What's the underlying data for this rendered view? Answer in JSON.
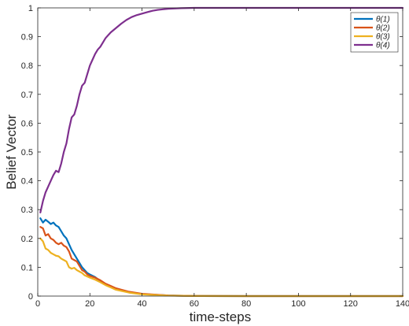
{
  "chart_data": {
    "type": "line",
    "xlabel": "time-steps",
    "ylabel": "Belief Vector",
    "xlim": [
      0,
      140
    ],
    "ylim": [
      0,
      1
    ],
    "x_ticks": [
      0,
      20,
      40,
      60,
      80,
      100,
      120,
      140
    ],
    "y_ticks": [
      0,
      0.1,
      0.2,
      0.3,
      0.4,
      0.5,
      0.6,
      0.7,
      0.8,
      0.9,
      1
    ],
    "grid": false,
    "legend_position": "top-right",
    "series": [
      {
        "name": "θ(1)",
        "color": "#0072BD",
        "points": [
          [
            1,
            0.27
          ],
          [
            2,
            0.255
          ],
          [
            3,
            0.265
          ],
          [
            4,
            0.258
          ],
          [
            5,
            0.25
          ],
          [
            6,
            0.255
          ],
          [
            7,
            0.245
          ],
          [
            8,
            0.24
          ],
          [
            9,
            0.225
          ],
          [
            10,
            0.21
          ],
          [
            11,
            0.2
          ],
          [
            12,
            0.18
          ],
          [
            13,
            0.16
          ],
          [
            14,
            0.145
          ],
          [
            15,
            0.13
          ],
          [
            16,
            0.115
          ],
          [
            17,
            0.1
          ],
          [
            18,
            0.09
          ],
          [
            19,
            0.08
          ],
          [
            20,
            0.075
          ],
          [
            22,
            0.066
          ],
          [
            24,
            0.052
          ],
          [
            26,
            0.04
          ],
          [
            28,
            0.032
          ],
          [
            30,
            0.024
          ],
          [
            35,
            0.013
          ],
          [
            40,
            0.007
          ],
          [
            50,
            0.002
          ],
          [
            60,
            0.0005
          ],
          [
            80,
            0
          ],
          [
            100,
            0
          ],
          [
            120,
            0
          ],
          [
            140,
            0
          ]
        ]
      },
      {
        "name": "θ(2)",
        "color": "#D95319",
        "points": [
          [
            1,
            0.24
          ],
          [
            2,
            0.235
          ],
          [
            3,
            0.21
          ],
          [
            4,
            0.215
          ],
          [
            5,
            0.2
          ],
          [
            6,
            0.195
          ],
          [
            7,
            0.185
          ],
          [
            8,
            0.18
          ],
          [
            9,
            0.185
          ],
          [
            10,
            0.175
          ],
          [
            11,
            0.17
          ],
          [
            12,
            0.155
          ],
          [
            13,
            0.13
          ],
          [
            14,
            0.125
          ],
          [
            15,
            0.12
          ],
          [
            16,
            0.105
          ],
          [
            17,
            0.09
          ],
          [
            18,
            0.085
          ],
          [
            19,
            0.075
          ],
          [
            20,
            0.07
          ],
          [
            22,
            0.064
          ],
          [
            24,
            0.055
          ],
          [
            26,
            0.043
          ],
          [
            28,
            0.035
          ],
          [
            30,
            0.027
          ],
          [
            35,
            0.015
          ],
          [
            40,
            0.008
          ],
          [
            50,
            0.002
          ],
          [
            60,
            0.0005
          ],
          [
            80,
            0
          ],
          [
            100,
            0
          ],
          [
            120,
            0
          ],
          [
            140,
            0
          ]
        ]
      },
      {
        "name": "θ(3)",
        "color": "#EDB120",
        "points": [
          [
            1,
            0.2
          ],
          [
            2,
            0.19
          ],
          [
            3,
            0.165
          ],
          [
            4,
            0.16
          ],
          [
            5,
            0.15
          ],
          [
            6,
            0.145
          ],
          [
            7,
            0.14
          ],
          [
            8,
            0.138
          ],
          [
            9,
            0.13
          ],
          [
            10,
            0.125
          ],
          [
            11,
            0.12
          ],
          [
            12,
            0.1
          ],
          [
            13,
            0.095
          ],
          [
            14,
            0.098
          ],
          [
            15,
            0.09
          ],
          [
            16,
            0.085
          ],
          [
            17,
            0.08
          ],
          [
            18,
            0.072
          ],
          [
            19,
            0.068
          ],
          [
            20,
            0.064
          ],
          [
            22,
            0.057
          ],
          [
            24,
            0.048
          ],
          [
            26,
            0.038
          ],
          [
            28,
            0.03
          ],
          [
            30,
            0.022
          ],
          [
            35,
            0.012
          ],
          [
            40,
            0.006
          ],
          [
            50,
            0.0015
          ],
          [
            60,
            0.0004
          ],
          [
            80,
            0
          ],
          [
            100,
            0
          ],
          [
            120,
            0
          ],
          [
            140,
            0
          ]
        ]
      },
      {
        "name": "θ(4)",
        "color": "#7E2F8E",
        "points": [
          [
            1,
            0.29
          ],
          [
            2,
            0.33
          ],
          [
            3,
            0.36
          ],
          [
            4,
            0.38
          ],
          [
            5,
            0.4
          ],
          [
            6,
            0.42
          ],
          [
            7,
            0.435
          ],
          [
            8,
            0.43
          ],
          [
            9,
            0.46
          ],
          [
            10,
            0.5
          ],
          [
            11,
            0.53
          ],
          [
            12,
            0.58
          ],
          [
            13,
            0.62
          ],
          [
            14,
            0.63
          ],
          [
            15,
            0.66
          ],
          [
            16,
            0.7
          ],
          [
            17,
            0.73
          ],
          [
            18,
            0.74
          ],
          [
            19,
            0.77
          ],
          [
            20,
            0.8
          ],
          [
            21,
            0.82
          ],
          [
            22,
            0.84
          ],
          [
            23,
            0.855
          ],
          [
            24,
            0.865
          ],
          [
            25,
            0.88
          ],
          [
            26,
            0.895
          ],
          [
            27,
            0.905
          ],
          [
            28,
            0.915
          ],
          [
            30,
            0.93
          ],
          [
            32,
            0.945
          ],
          [
            34,
            0.958
          ],
          [
            36,
            0.968
          ],
          [
            38,
            0.975
          ],
          [
            40,
            0.98
          ],
          [
            42,
            0.985
          ],
          [
            44,
            0.99
          ],
          [
            46,
            0.993
          ],
          [
            48,
            0.995
          ],
          [
            50,
            0.997
          ],
          [
            55,
            0.999
          ],
          [
            60,
            1
          ],
          [
            80,
            1
          ],
          [
            100,
            1
          ],
          [
            120,
            1
          ],
          [
            140,
            1
          ]
        ]
      }
    ]
  }
}
